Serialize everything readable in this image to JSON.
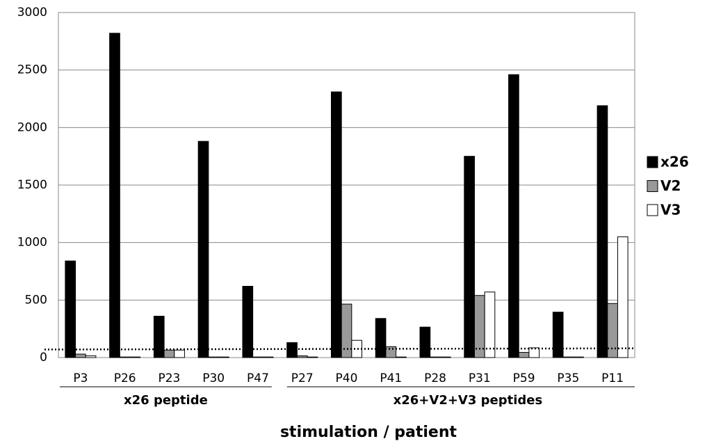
{
  "chart_data": {
    "type": "bar",
    "x_label": "stimulation / patient",
    "categories": [
      "P3",
      "P26",
      "P23",
      "P30",
      "P47",
      "P27",
      "P40",
      "P41",
      "P28",
      "P31",
      "P59",
      "P35",
      "P11"
    ],
    "groups": [
      {
        "label": "x26 peptide",
        "span": 5
      },
      {
        "label": "x26+V2+V3 peptides",
        "span": 8
      }
    ],
    "series": [
      {
        "name": "x26",
        "color": "#000000",
        "values": [
          840,
          2820,
          360,
          1880,
          620,
          130,
          2310,
          340,
          265,
          1750,
          2460,
          395,
          2190
        ]
      },
      {
        "name": "V2",
        "color": "#999999",
        "values": [
          30,
          5,
          65,
          5,
          5,
          15,
          465,
          95,
          5,
          540,
          45,
          5,
          470
        ]
      },
      {
        "name": "V3",
        "color": "#ffffff",
        "values": [
          15,
          5,
          65,
          5,
          5,
          5,
          150,
          5,
          5,
          570,
          85,
          5,
          1050
        ]
      }
    ],
    "threshold_line": [
      70,
      80
    ],
    "ylim": [
      0,
      3000
    ],
    "yticks": [
      0,
      500,
      1000,
      1500,
      2000,
      2500,
      3000
    ],
    "grid": true,
    "legend": "right"
  }
}
